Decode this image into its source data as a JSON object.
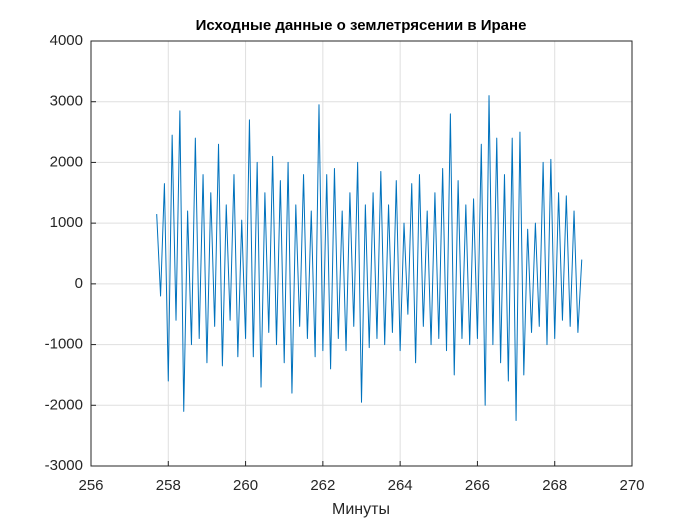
{
  "chart_data": {
    "type": "line",
    "title": "Исходные данные о землетрясении в Иране",
    "xlabel": "Минуты",
    "color": "#0072bd",
    "grid": true,
    "xlim": [
      256,
      270
    ],
    "xticks": [
      256,
      258,
      260,
      262,
      264,
      266,
      268,
      270
    ],
    "ylim": [
      -3000,
      4000
    ],
    "yticks": [
      -3000,
      -2000,
      -1000,
      0,
      1000,
      2000,
      3000,
      4000
    ],
    "x": [
      257.7,
      257.8,
      257.9,
      258.0,
      258.1,
      258.2,
      258.3,
      258.4,
      258.5,
      258.6,
      258.7,
      258.8,
      258.9,
      259.0,
      259.1,
      259.2,
      259.3,
      259.4,
      259.5,
      259.6,
      259.7,
      259.8,
      259.9,
      260.0,
      260.1,
      260.2,
      260.3,
      260.4,
      260.5,
      260.6,
      260.7,
      260.8,
      260.9,
      261.0,
      261.1,
      261.2,
      261.3,
      261.4,
      261.5,
      261.6,
      261.7,
      261.8,
      261.9,
      262.0,
      262.1,
      262.2,
      262.3,
      262.4,
      262.5,
      262.6,
      262.7,
      262.8,
      262.9,
      263.0,
      263.1,
      263.2,
      263.3,
      263.4,
      263.5,
      263.6,
      263.7,
      263.8,
      263.9,
      264.0,
      264.1,
      264.2,
      264.3,
      264.4,
      264.5,
      264.6,
      264.7,
      264.8,
      264.9,
      265.0,
      265.1,
      265.2,
      265.3,
      265.4,
      265.5,
      265.6,
      265.7,
      265.8,
      265.9,
      266.0,
      266.1,
      266.2,
      266.3,
      266.4,
      266.5,
      266.6,
      266.7,
      266.8,
      266.9,
      267.0,
      267.1,
      267.2,
      267.3,
      267.4,
      267.5,
      267.6,
      267.7,
      267.8,
      267.9,
      268.0,
      268.1,
      268.2,
      268.3,
      268.4,
      268.5,
      268.6,
      268.7
    ],
    "values": [
      1150,
      -200,
      1650,
      -1600,
      2450,
      -600,
      2850,
      -2100,
      1200,
      -1000,
      2400,
      -900,
      1800,
      -1300,
      1500,
      -700,
      2300,
      -1350,
      1300,
      -600,
      1800,
      -1200,
      1050,
      -900,
      2700,
      -1200,
      2000,
      -1700,
      1500,
      -800,
      2100,
      -1000,
      1700,
      -1300,
      2000,
      -1800,
      1300,
      -700,
      1800,
      -900,
      1200,
      -1200,
      2950,
      -1100,
      1800,
      -1400,
      1900,
      -900,
      1200,
      -1100,
      1500,
      -700,
      2000,
      -1950,
      1300,
      -1050,
      1500,
      -900,
      1850,
      -1000,
      1300,
      -800,
      1700,
      -1100,
      1000,
      -500,
      1650,
      -1300,
      1800,
      -700,
      1200,
      -1000,
      1500,
      -900,
      1900,
      -1100,
      2800,
      -1500,
      1700,
      -900,
      1300,
      -1000,
      1400,
      -900,
      2300,
      -2000,
      3100,
      -1000,
      2400,
      -1300,
      1800,
      -1600,
      2400,
      -2250,
      2500,
      -1500,
      900,
      -800,
      1000,
      -700,
      2000,
      -1000,
      2050,
      -900,
      1500,
      -600,
      1450,
      -700,
      1200,
      -800,
      400
    ]
  }
}
